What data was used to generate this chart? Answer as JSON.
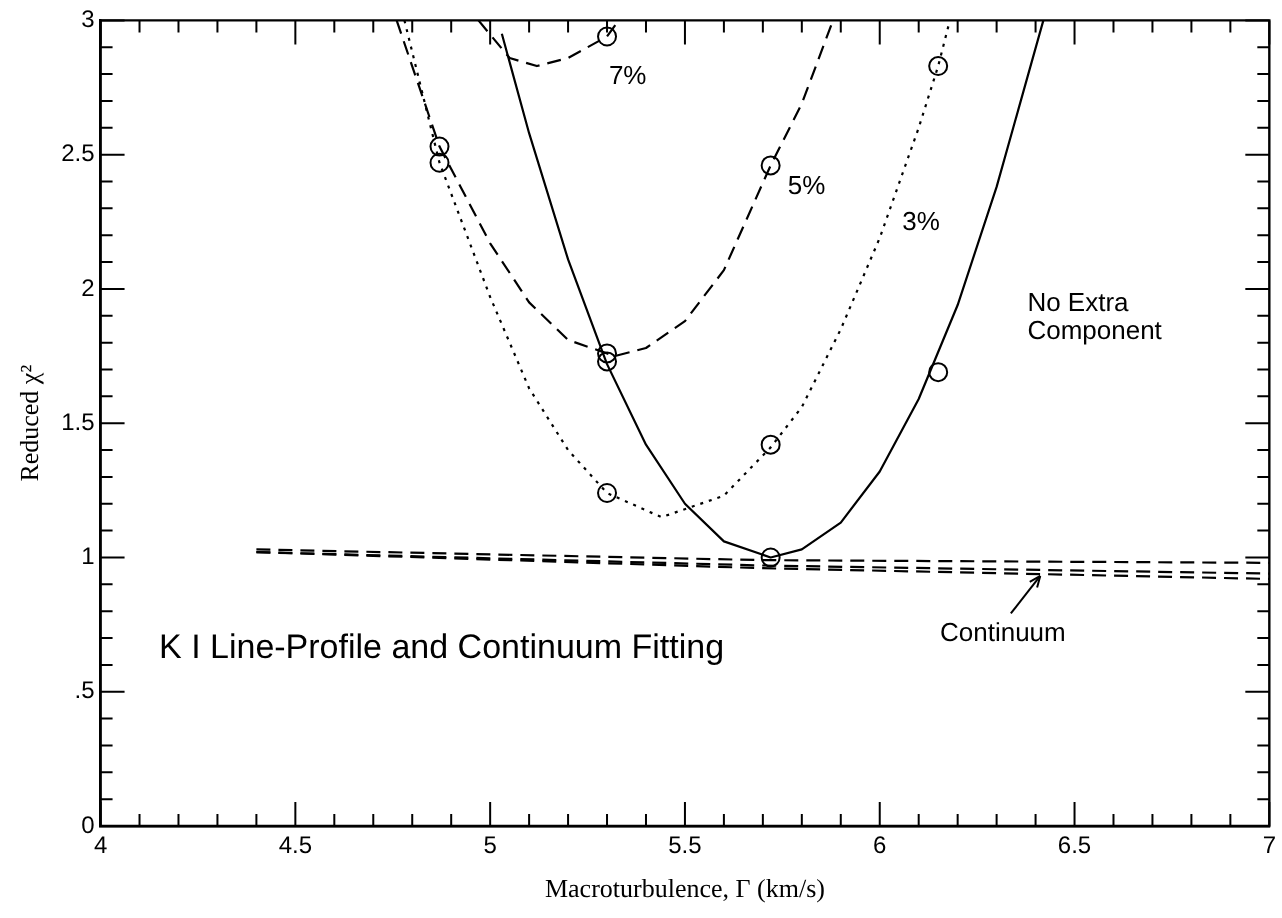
{
  "chart_data": {
    "type": "line",
    "xlabel": "Macroturbulence, Γ (km/s)",
    "ylabel": "Reduced χ²",
    "xlim": [
      4,
      7
    ],
    "ylim": [
      0,
      3
    ],
    "xticks": [
      4,
      {
        "value": 4.1,
        "label": null
      },
      {
        "value": 4.2,
        "label": null
      },
      {
        "value": 4.3,
        "label": null
      },
      {
        "value": 4.4,
        "label": null
      },
      4.5,
      {
        "value": 4.6,
        "label": null
      },
      {
        "value": 4.7,
        "label": null
      },
      {
        "value": 4.8,
        "label": null
      },
      {
        "value": 4.9,
        "label": null
      },
      5,
      {
        "value": 5.1,
        "label": null
      },
      {
        "value": 5.2,
        "label": null
      },
      {
        "value": 5.3,
        "label": null
      },
      {
        "value": 5.4,
        "label": null
      },
      5.5,
      {
        "value": 5.6,
        "label": null
      },
      {
        "value": 5.7,
        "label": null
      },
      {
        "value": 5.8,
        "label": null
      },
      {
        "value": 5.9,
        "label": null
      },
      6,
      {
        "value": 6.1,
        "label": null
      },
      {
        "value": 6.2,
        "label": null
      },
      {
        "value": 6.3,
        "label": null
      },
      {
        "value": 6.4,
        "label": null
      },
      6.5,
      {
        "value": 6.6,
        "label": null
      },
      {
        "value": 6.7,
        "label": null
      },
      {
        "value": 6.8,
        "label": null
      },
      {
        "value": 6.9,
        "label": null
      },
      7
    ],
    "yticks": [
      0,
      {
        "value": 0.1,
        "label": null
      },
      {
        "value": 0.2,
        "label": null
      },
      {
        "value": 0.3,
        "label": null
      },
      {
        "value": 0.4,
        "label": null
      },
      {
        "value": 0.5,
        "label": ".5"
      },
      {
        "value": 0.6,
        "label": null
      },
      {
        "value": 0.7,
        "label": null
      },
      {
        "value": 0.8,
        "label": null
      },
      {
        "value": 0.9,
        "label": null
      },
      1,
      {
        "value": 1.1,
        "label": null
      },
      {
        "value": 1.2,
        "label": null
      },
      {
        "value": 1.3,
        "label": null
      },
      {
        "value": 1.4,
        "label": null
      },
      1.5,
      {
        "value": 1.6,
        "label": null
      },
      {
        "value": 1.7,
        "label": null
      },
      {
        "value": 1.8,
        "label": null
      },
      {
        "value": 1.9,
        "label": null
      },
      2,
      {
        "value": 2.1,
        "label": null
      },
      {
        "value": 2.2,
        "label": null
      },
      {
        "value": 2.3,
        "label": null
      },
      {
        "value": 2.4,
        "label": null
      },
      2.5,
      {
        "value": 2.6,
        "label": null
      },
      {
        "value": 2.7,
        "label": null
      },
      {
        "value": 2.8,
        "label": null
      },
      {
        "value": 2.9,
        "label": null
      },
      3
    ],
    "marker": "none",
    "line_style": "solid",
    "series": [
      {
        "color": "#000000",
        "x": [
          5.03,
          5.1,
          5.2,
          5.3,
          5.4,
          5.5,
          5.6,
          5.72,
          5.8,
          5.9,
          6.0,
          6.1,
          6.2,
          6.3,
          6.42
        ],
        "values": [
          2.95,
          2.58,
          2.11,
          1.72,
          1.42,
          1.2,
          1.06,
          1.0,
          1.03,
          1.13,
          1.32,
          1.59,
          1.94,
          2.38,
          3.0
        ]
      },
      {
        "color": "#000000",
        "line_style": "dashed",
        "x": [
          4.76,
          4.87,
          5.0,
          5.1,
          5.2,
          5.32,
          5.4,
          5.5,
          5.6,
          5.72,
          5.8,
          5.88
        ],
        "values": [
          3.0,
          2.53,
          2.17,
          1.95,
          1.81,
          1.75,
          1.78,
          1.88,
          2.07,
          2.46,
          2.69,
          3.0
        ]
      },
      {
        "color": "#000000",
        "line_style": "dotted",
        "x": [
          4.78,
          4.87,
          5.0,
          5.1,
          5.2,
          5.3,
          5.44,
          5.6,
          5.72,
          5.8,
          5.9,
          6.0,
          6.1,
          6.15,
          6.18
        ],
        "values": [
          3.0,
          2.47,
          1.97,
          1.63,
          1.4,
          1.24,
          1.15,
          1.23,
          1.41,
          1.56,
          1.85,
          2.19,
          2.6,
          2.83,
          3.0
        ]
      },
      {
        "color": "#000000",
        "line_style": "dashed",
        "x": [
          4.97,
          5.05,
          5.12,
          5.2,
          5.3,
          5.33
        ],
        "values": [
          3.0,
          2.86,
          2.83,
          2.86,
          2.94,
          3.0
        ]
      },
      {
        "color": "#000000",
        "line_style": "dashed",
        "x": [
          4.4,
          5.7,
          7.0
        ],
        "values": [
          1.03,
          0.99,
          0.98
        ]
      },
      {
        "color": "#000000",
        "line_style": "dashed",
        "x": [
          4.4,
          5.7,
          7.0
        ],
        "values": [
          1.02,
          0.97,
          0.94
        ]
      },
      {
        "color": "#000000",
        "line_style": "dashed",
        "x": [
          4.4,
          5.7,
          7.0
        ],
        "values": [
          1.02,
          0.96,
          0.92
        ]
      },
      {
        "type": "scatter",
        "color": "#000000",
        "marker": "circle",
        "x": [
          5.3,
          5.72,
          6.15
        ],
        "values": [
          1.73,
          1.0,
          1.69
        ]
      },
      {
        "type": "scatter",
        "color": "#000000",
        "marker": "circle",
        "x": [
          4.87,
          5.3,
          5.72
        ],
        "values": [
          2.53,
          1.76,
          2.46
        ]
      },
      {
        "type": "scatter",
        "color": "#000000",
        "marker": "circle",
        "x": [
          4.87,
          5.3,
          5.72,
          6.15
        ],
        "values": [
          2.47,
          1.24,
          1.42,
          2.83
        ]
      },
      {
        "type": "scatter",
        "color": "#000000",
        "marker": "circle",
        "x": [
          5.3
        ],
        "values": [
          2.94
        ]
      }
    ],
    "annotations": [
      "K I Line-Profile and Continuum Fitting",
      "No Extra Component",
      "5%",
      "3%",
      "7%",
      "Continuum"
    ]
  }
}
